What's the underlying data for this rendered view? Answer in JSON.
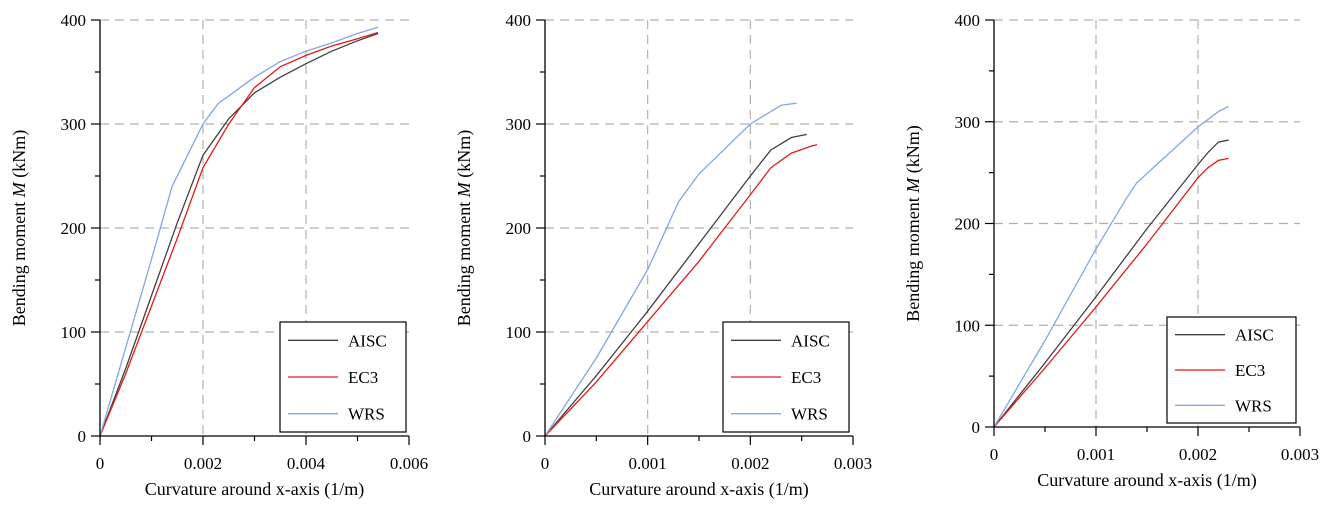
{
  "figure": {
    "legend_line_colors": {
      "AISC": "#404040",
      "EC3": "#e31a1c",
      "WRS": "#7fa7e6"
    }
  },
  "chart_data": [
    {
      "type": "line",
      "xlabel": "Curvature around x-axis (1/m)",
      "ylabel": "Bending moment M (kNm)",
      "xlim": [
        0,
        0.006
      ],
      "ylim": [
        0,
        400
      ],
      "xticks": [
        "0",
        "0.002",
        "0.004",
        "0.006"
      ],
      "yticks": [
        "0",
        "100",
        "200",
        "300",
        "400"
      ],
      "grid": true,
      "legend": "bottom-right",
      "series": [
        {
          "name": "AISC",
          "color": "#404040",
          "x": [
            0,
            0.0005,
            0.001,
            0.0015,
            0.002,
            0.0025,
            0.003,
            0.0035,
            0.004,
            0.0045,
            0.005,
            0.0054
          ],
          "y": [
            0,
            65,
            135,
            205,
            270,
            305,
            330,
            345,
            358,
            370,
            380,
            387
          ]
        },
        {
          "name": "EC3",
          "color": "#e31a1c",
          "x": [
            0,
            0.0005,
            0.001,
            0.0015,
            0.002,
            0.0025,
            0.003,
            0.0035,
            0.004,
            0.0045,
            0.005,
            0.0054
          ],
          "y": [
            0,
            60,
            125,
            190,
            258,
            300,
            335,
            355,
            366,
            375,
            382,
            388
          ]
        },
        {
          "name": "WRS",
          "color": "#7fa7e6",
          "x": [
            0,
            0.0005,
            0.001,
            0.0014,
            0.002,
            0.0023,
            0.0025,
            0.003,
            0.0035,
            0.004,
            0.0045,
            0.005,
            0.0054
          ],
          "y": [
            0,
            85,
            170,
            240,
            300,
            320,
            327,
            345,
            360,
            370,
            378,
            387,
            393
          ]
        }
      ]
    },
    {
      "type": "line",
      "xlabel": "Curvature around x-axis (1/m)",
      "ylabel": "Bending moment M (kNm)",
      "xlim": [
        0,
        0.003
      ],
      "ylim": [
        0,
        400
      ],
      "xticks": [
        "0",
        "0.001",
        "0.002",
        "0.003"
      ],
      "yticks": [
        "0",
        "100",
        "200",
        "300",
        "400"
      ],
      "grid": true,
      "legend": "bottom-right",
      "series": [
        {
          "name": "AISC",
          "color": "#404040",
          "x": [
            0,
            0.0005,
            0.001,
            0.0015,
            0.002,
            0.0022,
            0.0024,
            0.00255
          ],
          "y": [
            0,
            58,
            120,
            185,
            250,
            275,
            287,
            290
          ]
        },
        {
          "name": "EC3",
          "color": "#e31a1c",
          "x": [
            0,
            0.0005,
            0.001,
            0.0015,
            0.002,
            0.0022,
            0.0024,
            0.0026,
            0.00265
          ],
          "y": [
            0,
            52,
            110,
            168,
            232,
            258,
            272,
            279,
            280
          ]
        },
        {
          "name": "WRS",
          "color": "#7fa7e6",
          "x": [
            0,
            0.0005,
            0.001,
            0.0013,
            0.0015,
            0.002,
            0.0022,
            0.0023,
            0.00245
          ],
          "y": [
            0,
            75,
            160,
            225,
            252,
            300,
            312,
            318,
            320
          ]
        }
      ]
    },
    {
      "type": "line",
      "xlabel": "Curvature around x-axis (1/m)",
      "ylabel": "Bending moment M (kNm)",
      "xlim": [
        0,
        0.003
      ],
      "ylim": [
        0,
        400
      ],
      "xticks": [
        "0",
        "0.001",
        "0.002",
        "0.003"
      ],
      "yticks": [
        "0",
        "100",
        "200",
        "300",
        "400"
      ],
      "grid": true,
      "legend": "bottom-right",
      "series": [
        {
          "name": "AISC",
          "color": "#404040",
          "x": [
            0,
            0.0005,
            0.001,
            0.0015,
            0.002,
            0.0021,
            0.0022,
            0.0023
          ],
          "y": [
            0,
            63,
            128,
            195,
            258,
            270,
            280,
            282
          ]
        },
        {
          "name": "EC3",
          "color": "#e31a1c",
          "x": [
            0,
            0.0005,
            0.001,
            0.0015,
            0.002,
            0.0021,
            0.0022,
            0.0023
          ],
          "y": [
            0,
            58,
            118,
            180,
            245,
            255,
            262,
            264
          ]
        },
        {
          "name": "WRS",
          "color": "#7fa7e6",
          "x": [
            0,
            0.0005,
            0.001,
            0.0013,
            0.0014,
            0.002,
            0.0022,
            0.0023
          ],
          "y": [
            0,
            85,
            175,
            225,
            240,
            295,
            310,
            315
          ]
        }
      ]
    }
  ]
}
